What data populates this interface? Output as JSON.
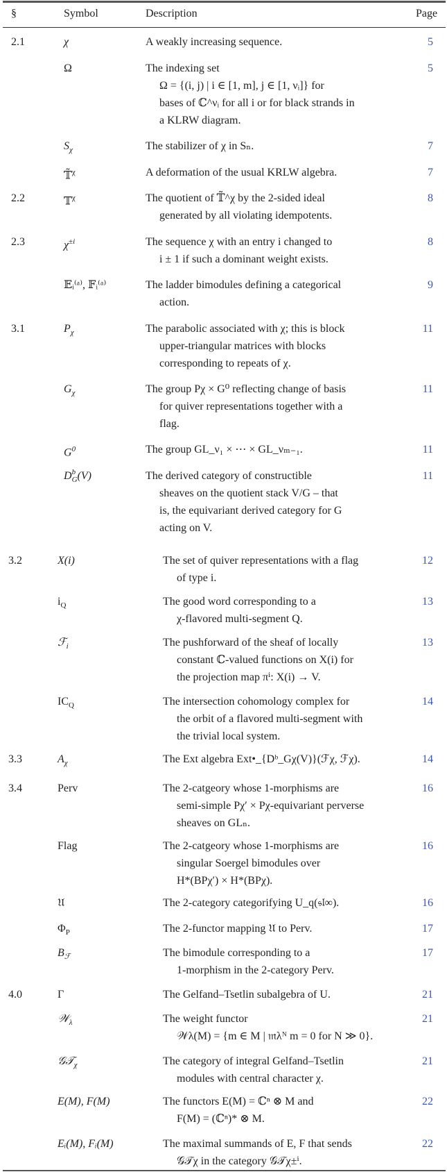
{
  "header": {
    "section": "§",
    "symbol": "Symbol",
    "description": "Description",
    "page": "Page"
  },
  "colors": {
    "page_link": "#3b57b0",
    "text": "#222222"
  },
  "rows": [
    {
      "section": "2.1",
      "symbol": {
        "base": "χ",
        "sub": "",
        "sup": ""
      },
      "description": [
        "A weakly increasing sequence."
      ],
      "page": "5"
    },
    {
      "section": "",
      "symbol": {
        "base": "Ω",
        "sub": "",
        "sup": "",
        "upright": true
      },
      "description": [
        "The indexing set",
        "Ω = {(i, j) | i ∈ [1, m], j ∈ [1, νᵢ]} for",
        "bases of ℂ^νᵢ for all i or for black strands in",
        "a KLRW diagram."
      ],
      "page": "5"
    },
    {
      "section": "",
      "symbol": {
        "base": "S",
        "sub": "χ",
        "sup": ""
      },
      "description": [
        "The stabilizer of χ in Sₙ."
      ],
      "page": "7"
    },
    {
      "section": "",
      "symbol": {
        "base": "𝕋̃",
        "sub": "",
        "sup": "χ",
        "upright": true
      },
      "description": [
        "A deformation of the usual KRLW algebra."
      ],
      "page": "7"
    },
    {
      "section": "2.2",
      "symbol": {
        "base": "𝕋",
        "sub": "",
        "sup": "χ",
        "upright": true
      },
      "description": [
        "The quotient of 𝕋̃^χ by the 2-sided ideal",
        "generated by all violating idempotents."
      ],
      "page": "8"
    },
    {
      "section": "2.3",
      "symbol": {
        "base": "χ",
        "sub": "",
        "sup": "±i"
      },
      "description": [
        "The sequence χ with an entry i changed to",
        "i ± 1 if such a dominant weight exists."
      ],
      "page": "8"
    },
    {
      "section": "",
      "symbol": {
        "base": "𝔼ᵢ⁽ᵃ⁾, 𝔽ᵢ⁽ᵃ⁾",
        "sub": "",
        "sup": "",
        "upright": true
      },
      "description": [
        "The ladder bimodules defining a categorical",
        "action."
      ],
      "page": "9"
    },
    {
      "section": "3.1",
      "symbol": {
        "base": "P",
        "sub": "χ",
        "sup": ""
      },
      "description": [
        "The parabolic associated with χ; this is block",
        "upper-triangular matrices with blocks",
        "corresponding to repeats of χ."
      ],
      "page": "11"
    },
    {
      "section": "",
      "symbol": {
        "base": "G",
        "sub": "χ",
        "sup": ""
      },
      "description": [
        "The group Pχ × G⁰ reflecting change of basis",
        "for quiver representations together with a",
        "flag."
      ],
      "page": "11"
    },
    {
      "section": "",
      "symbol": {
        "base": "G",
        "sub": "",
        "sup": "0"
      },
      "description": [
        "The group GL_ν₁ × ⋯ × GL_νₘ₋₁."
      ],
      "page": "11"
    },
    {
      "section": "",
      "symbol": {
        "base": "D",
        "sub": "G",
        "sup": "b",
        "tail": "(V)"
      },
      "description": [
        "The derived category of constructible",
        "sheaves on the quotient stack V/G – that",
        "is, the equivariant derived category for G",
        "acting on V."
      ],
      "page": "11"
    },
    {
      "section": "3.2",
      "symbol": {
        "base": "X(i)",
        "sub": "",
        "sup": ""
      },
      "description": [
        "The set of quiver representations with a flag",
        "of type i."
      ],
      "page": "12"
    },
    {
      "section": "",
      "symbol": {
        "base": "i",
        "sub": "Q",
        "sup": "",
        "upright": true
      },
      "description": [
        "The good word corresponding to a",
        "χ-flavored multi-segment Q."
      ],
      "page": "13"
    },
    {
      "section": "",
      "symbol": {
        "base": "ℱ",
        "sub": "i",
        "sup": ""
      },
      "description": [
        "The pushforward of the sheaf of locally",
        "constant ℂ-valued functions on X(i) for",
        "the projection map πⁱ: X(i) → V."
      ],
      "page": "13"
    },
    {
      "section": "",
      "symbol": {
        "base": "IC",
        "sub": "Q",
        "sup": "",
        "upright": true
      },
      "description": [
        "The intersection cohomology complex for",
        "the orbit of a flavored multi-segment with",
        "the trivial local system."
      ],
      "page": "14"
    },
    {
      "section": "3.3",
      "symbol": {
        "base": "A",
        "sub": "χ",
        "sup": ""
      },
      "description": [
        "The Ext algebra Ext•_{Dᵇ_Gχ(V)}(ℱχ, ℱχ)."
      ],
      "page": "14"
    },
    {
      "section": "3.4",
      "symbol": {
        "base": "Perv",
        "sub": "",
        "sup": "",
        "upright": true
      },
      "description": [
        "The 2-catgeory whose 1-morphisms are",
        "semi-simple Pχ′ × Pχ-equivariant perverse",
        "sheaves on GLₙ."
      ],
      "page": "16"
    },
    {
      "section": "",
      "symbol": {
        "base": "Flag",
        "sub": "",
        "sup": "",
        "upright": true
      },
      "description": [
        "The 2-catgeory whose 1-morphisms are",
        "singular Soergel bimodules over",
        "H*(BPχ′) × H*(BPχ)."
      ],
      "page": "16"
    },
    {
      "section": "",
      "symbol": {
        "base": "𝔘",
        "sub": "",
        "sup": "",
        "upright": true
      },
      "description": [
        "The 2-category categorifying U_q(𝔰𝔩∞)."
      ],
      "page": "16"
    },
    {
      "section": "",
      "symbol": {
        "base": "Φ",
        "sub": "P",
        "sup": "",
        "upright": true
      },
      "description": [
        "The 2-functor mapping 𝔘 to Perv."
      ],
      "page": "17"
    },
    {
      "section": "",
      "symbol": {
        "base": "B",
        "sub": "ℱ",
        "sup": ""
      },
      "description": [
        "The bimodule corresponding to a",
        "1-morphism in the 2-category Perv."
      ],
      "page": "17"
    },
    {
      "section": "4.0",
      "symbol": {
        "base": "Γ",
        "sub": "",
        "sup": "",
        "upright": true
      },
      "description": [
        "The Gelfand–Tsetlin subalgebra of U."
      ],
      "page": "21"
    },
    {
      "section": "",
      "symbol": {
        "base": "𝒲",
        "sub": "λ",
        "sup": ""
      },
      "description": [
        "The weight functor",
        "𝒲λ(M) = {m ∈ M | 𝔪λᴺ m = 0 for N ≫ 0}."
      ],
      "page": "21"
    },
    {
      "section": "",
      "symbol": {
        "base": "𝒢𝒯",
        "sub": "χ",
        "sup": ""
      },
      "description": [
        "The category of integral Gelfand–Tsetlin",
        "modules with central character χ."
      ],
      "page": "21"
    },
    {
      "section": "",
      "symbol": {
        "base": "E(M), F(M)",
        "sub": "",
        "sup": ""
      },
      "description": [
        "The functors E(M) = ℂⁿ ⊗ M and",
        "F(M) = (ℂⁿ)* ⊗ M."
      ],
      "page": "22"
    },
    {
      "section": "",
      "symbol": {
        "base": "Eᵢ(M), Fᵢ(M)",
        "sub": "",
        "sup": ""
      },
      "description": [
        "The maximal summands of E, F that sends",
        "𝒢𝒯χ in the category 𝒢𝒯χ±ⁱ."
      ],
      "page": "22"
    }
  ]
}
